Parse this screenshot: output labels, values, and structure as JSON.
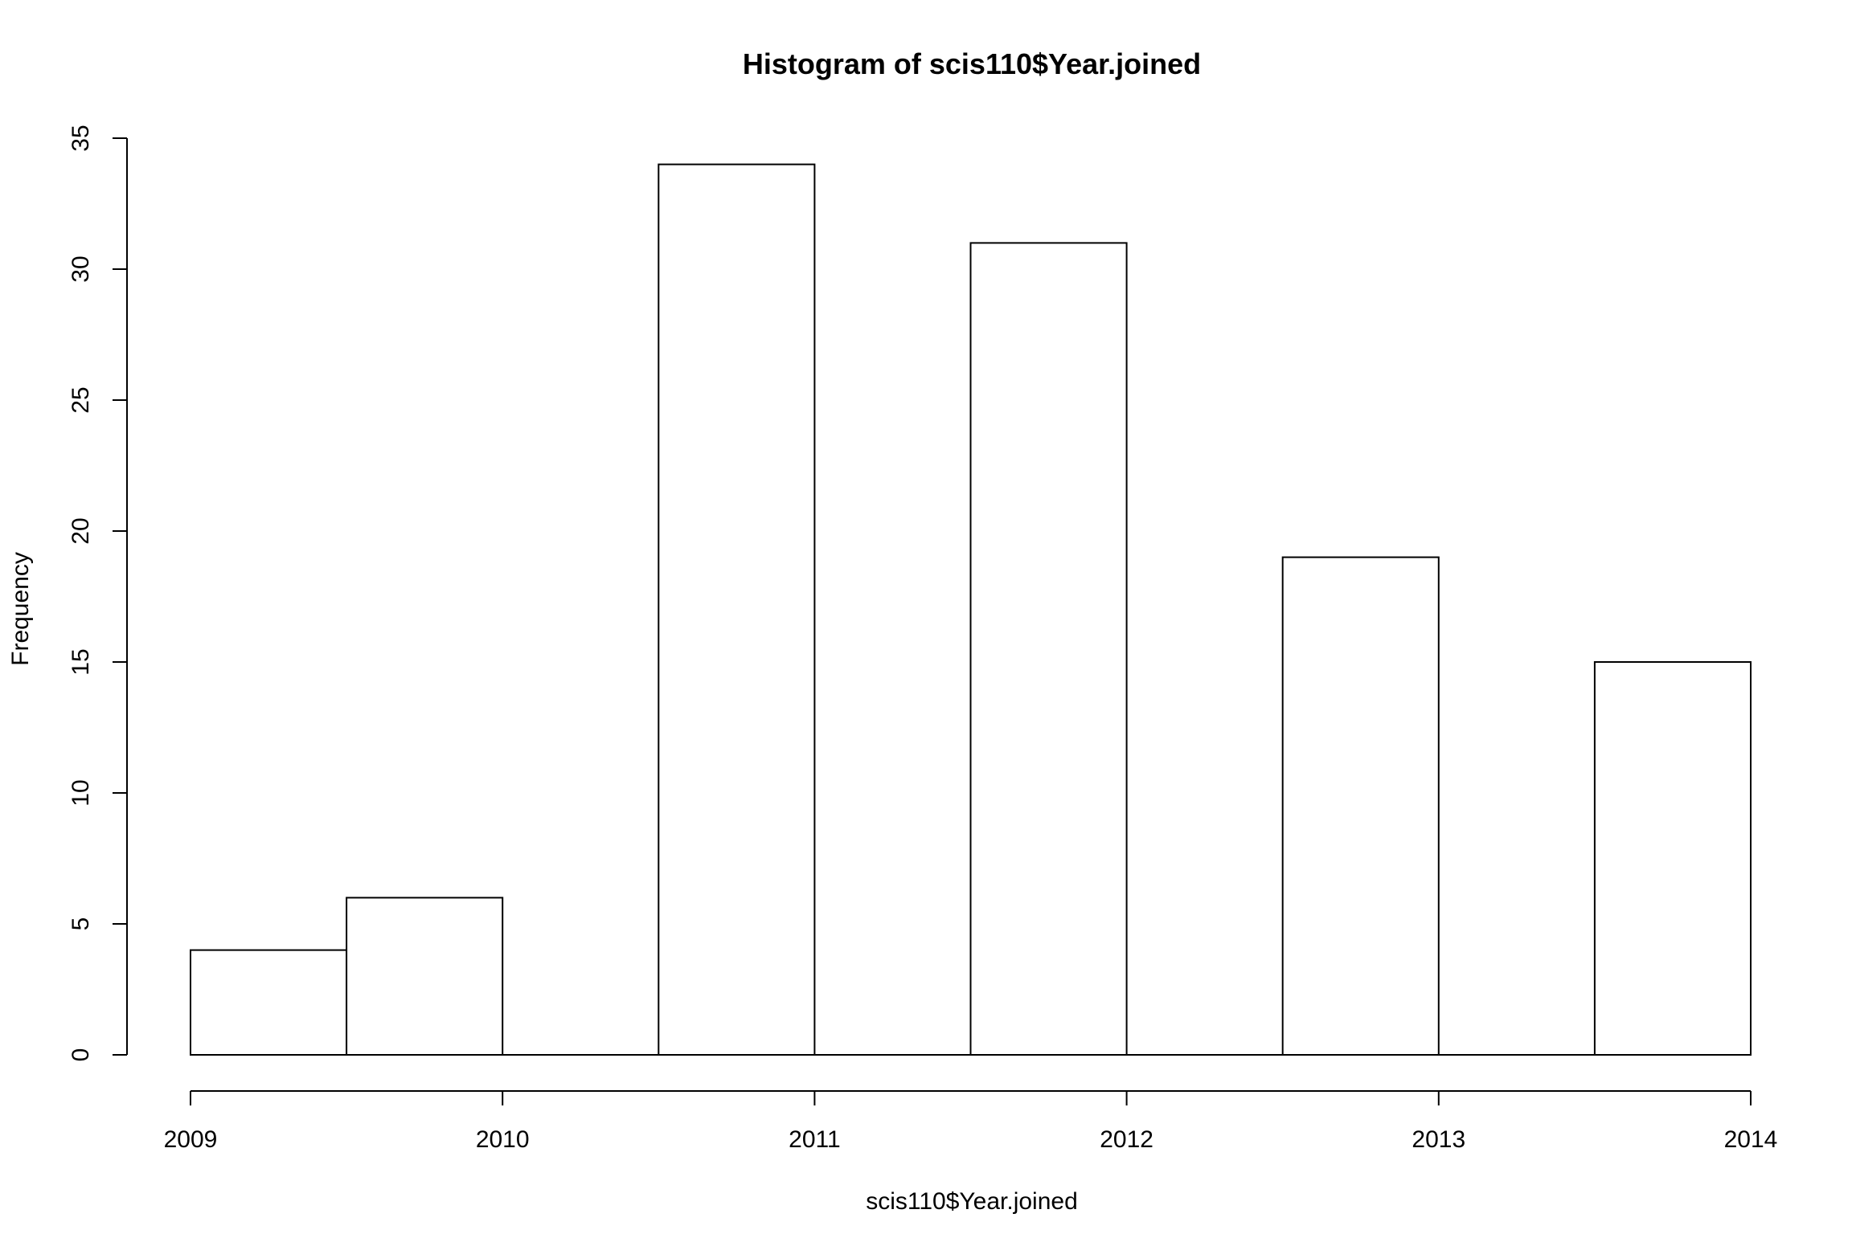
{
  "chart_data": {
    "type": "bar",
    "histogram": true,
    "title": "Histogram of scis110$Year.joined",
    "xlabel": "scis110$Year.joined",
    "ylabel": "Frequency",
    "bins": [
      {
        "start": 2009.0,
        "end": 2009.5,
        "value": 4
      },
      {
        "start": 2009.5,
        "end": 2010.0,
        "value": 6
      },
      {
        "start": 2010.0,
        "end": 2010.5,
        "value": 0
      },
      {
        "start": 2010.5,
        "end": 2011.0,
        "value": 34
      },
      {
        "start": 2011.0,
        "end": 2011.5,
        "value": 0
      },
      {
        "start": 2011.5,
        "end": 2012.0,
        "value": 31
      },
      {
        "start": 2012.0,
        "end": 2012.5,
        "value": 0
      },
      {
        "start": 2012.5,
        "end": 2013.0,
        "value": 19
      },
      {
        "start": 2013.0,
        "end": 2013.5,
        "value": 0
      },
      {
        "start": 2013.5,
        "end": 2014.0,
        "value": 15
      }
    ],
    "xlim": [
      2009,
      2014
    ],
    "ylim": [
      0,
      35
    ],
    "x_ticks": [
      "2009",
      "2010",
      "2011",
      "2012",
      "2013",
      "2014"
    ],
    "y_ticks": [
      "0",
      "5",
      "10",
      "15",
      "20",
      "25",
      "30",
      "35"
    ],
    "grid": false,
    "bar_fill": "#ffffff",
    "bar_stroke": "#000000"
  }
}
